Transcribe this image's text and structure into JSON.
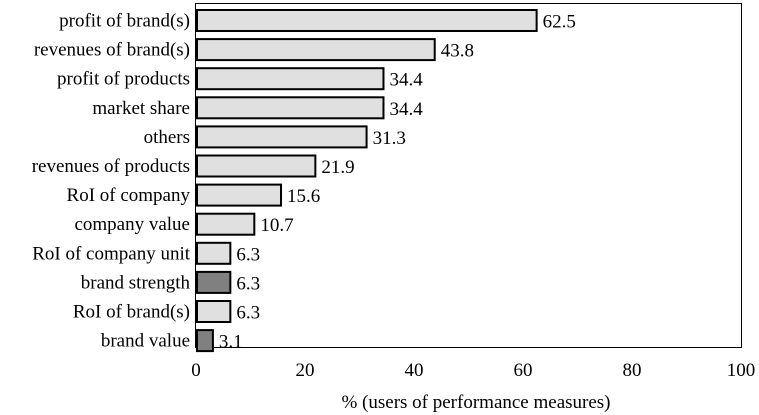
{
  "chart_data": {
    "type": "bar",
    "orientation": "horizontal",
    "categories": [
      "profit of brand(s)",
      "revenues of brand(s)",
      "profit of products",
      "market share",
      "others",
      "revenues of products",
      "RoI of company",
      "company value",
      "RoI of company unit",
      "brand strength",
      "RoI of brand(s)",
      "brand value"
    ],
    "values": [
      62.5,
      43.8,
      34.4,
      34.4,
      31.3,
      21.9,
      15.6,
      10.7,
      6.3,
      6.3,
      6.3,
      3.1
    ],
    "value_labels": [
      "62.5",
      "43.8",
      "34.4",
      "34.4",
      "31.3",
      "21.9",
      "15.6",
      "10.7",
      "6.3",
      "6.3",
      "6.3",
      "3.1"
    ],
    "bar_colors": [
      "#e0e0e0",
      "#e0e0e0",
      "#e0e0e0",
      "#e0e0e0",
      "#e0e0e0",
      "#e0e0e0",
      "#e0e0e0",
      "#e0e0e0",
      "#e0e0e0",
      "#808080",
      "#e0e0e0",
      "#808080"
    ],
    "xlabel": "% (users of performance measures)",
    "ylabel": "",
    "title": "",
    "xlim": [
      0,
      100
    ],
    "xticks": [
      0,
      20,
      40,
      60,
      80,
      100
    ],
    "xtick_labels": [
      "0",
      "20",
      "40",
      "60",
      "80",
      "100"
    ],
    "grid": false,
    "legend": "none"
  }
}
